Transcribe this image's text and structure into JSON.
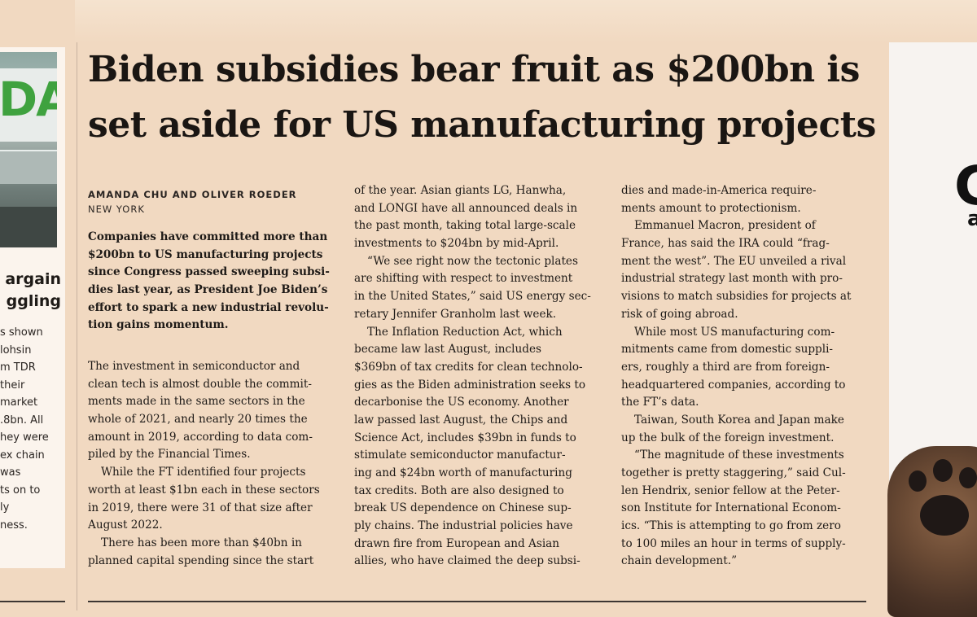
{
  "article": {
    "headline_line1": "Biden subsidies bear fruit as $200bn is",
    "headline_line2": "set aside for US manufacturing projects",
    "byline": "AMANDA CHU AND OLIVER ROEDER",
    "dateline": "NEW YORK",
    "standfirst": [
      "Companies have committed more than",
      "$200bn to US manufacturing projects",
      "since Congress passed sweeping subsi-",
      "dies last year, as President Joe Biden’s",
      "effort to spark a new industrial revolu-",
      "tion gains momentum."
    ],
    "column1": [
      "The investment in semiconductor and",
      "clean tech is almost double the commit-",
      "ments made in the same sectors in the",
      "whole of 2021, and nearly 20 times the",
      "amount in 2019, according to data com-",
      "piled by the Financial Times.",
      "While the FT identified four projects",
      "worth at least $1bn each in these sectors",
      "in 2019, there were 31 of that size after",
      "August 2022.",
      "There has been more than $40bn in",
      "planned capital spending since the start"
    ],
    "column2": [
      "of the year. Asian giants LG, Hanwha,",
      "and LONGI have all announced deals in",
      "the past month, taking total large-scale",
      "investments to $204bn by mid-April.",
      "“We see right now the tectonic plates",
      "are shifting with respect to investment",
      "in the United States,” said US energy sec-",
      "retary Jennifer Granholm last week.",
      "The Inflation Reduction Act, which",
      "became law last August, includes",
      "$369bn of tax credits for clean technolo-",
      "gies as the Biden administration seeks to",
      "decarbonise the US economy. Another",
      "law passed last August, the Chips and",
      "Science Act, includes $39bn in funds to",
      "stimulate semiconductor manufactur-",
      "ing and $24bn worth of manufacturing",
      "tax credits. Both are also designed to",
      "break US dependence on Chinese sup-",
      "ply chains. The industrial policies have",
      "drawn fire from European and Asian",
      "allies, who have claimed the deep subsi-"
    ],
    "column3": [
      "dies and made-in-America require-",
      "ments amount to protectionism.",
      "Emmanuel Macron, president of",
      "France, has said the IRA could “frag-",
      "ment the west”. The EU unveiled a rival",
      "industrial strategy last month with pro-",
      "visions to match subsidies for projects at",
      "risk of going abroad.",
      "While most US manufacturing com-",
      "mitments came from domestic suppli-",
      "ers, roughly a third are from foreign-",
      "headquartered companies, according to",
      "the FT’s data.",
      "Taiwan, South Korea and Japan make",
      "up the bulk of the foreign investment.",
      "“The magnitude of these investments",
      "together is pretty staggering,” said Cul-",
      "len Hendrix, senior fellow at the Peter-",
      "son Institute for International Econom-",
      "ics. “This is attempting to go from zero",
      "to 100 miles an hour in terms of supply-",
      "chain development.”"
    ]
  },
  "left_article": {
    "photo_sign": "DA",
    "headline": [
      "argain",
      "ggling"
    ],
    "body": [
      "s shown",
      "lohsin",
      "m TDR",
      "their",
      "market",
      ".8bn. All",
      "hey were",
      "ex chain",
      "was",
      "ts on to",
      "ly",
      "ness."
    ]
  },
  "right_ad": {
    "letter_large": "G",
    "letter_small": "a"
  }
}
